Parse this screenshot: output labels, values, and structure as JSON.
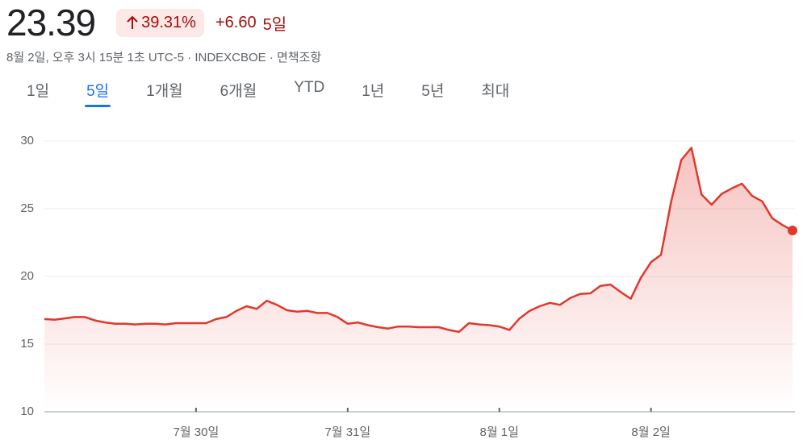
{
  "header": {
    "price": "23.39",
    "change_percent": "39.31%",
    "change": "+6.60",
    "period": "5일",
    "subtitle": "8월 2일, 오후 3시 15분 1초 UTC-5 · INDEXCBOE · 면책조항"
  },
  "tabs": [
    "1일",
    "5일",
    "1개월",
    "6개월",
    "YTD",
    "1년",
    "5년",
    "최대"
  ],
  "selected_tab": 1,
  "chart_data": {
    "type": "line",
    "color": "#e0382d",
    "categories": [
      null,
      null,
      null,
      null,
      null,
      null,
      null,
      null,
      null,
      null,
      null,
      null,
      null,
      null,
      null,
      "7월 30일",
      null,
      null,
      null,
      null,
      null,
      null,
      null,
      null,
      null,
      null,
      null,
      null,
      null,
      null,
      "7월 31일",
      null,
      null,
      null,
      null,
      null,
      null,
      null,
      null,
      null,
      null,
      null,
      null,
      null,
      null,
      "8월 1일",
      null,
      null,
      null,
      null,
      null,
      null,
      null,
      null,
      null,
      null,
      null,
      null,
      null,
      null,
      "8월 2일",
      null,
      null,
      null,
      null,
      null,
      null,
      null,
      null,
      null,
      null,
      null,
      null,
      null,
      null
    ],
    "values": [
      16.85,
      16.8,
      16.9,
      17.0,
      17.0,
      16.75,
      16.6,
      16.5,
      16.5,
      16.45,
      16.5,
      16.5,
      16.45,
      16.55,
      16.55,
      16.55,
      16.55,
      16.85,
      17.0,
      17.45,
      17.8,
      17.6,
      18.2,
      17.9,
      17.5,
      17.4,
      17.45,
      17.3,
      17.3,
      17.0,
      16.5,
      16.6,
      16.4,
      16.25,
      16.15,
      16.3,
      16.3,
      16.25,
      16.25,
      16.25,
      16.05,
      15.9,
      16.55,
      16.45,
      16.4,
      16.3,
      16.05,
      16.9,
      17.45,
      17.8,
      18.05,
      17.9,
      18.4,
      18.7,
      18.75,
      19.3,
      19.4,
      18.85,
      18.35,
      19.9,
      21.05,
      21.6,
      25.55,
      28.6,
      29.5,
      26.05,
      25.3,
      26.1,
      26.5,
      26.85,
      25.95,
      25.55,
      24.3,
      23.8,
      23.39
    ],
    "ylim": [
      10,
      30
    ],
    "yticks": [
      10,
      15,
      20,
      25,
      30
    ],
    "grid": true
  }
}
